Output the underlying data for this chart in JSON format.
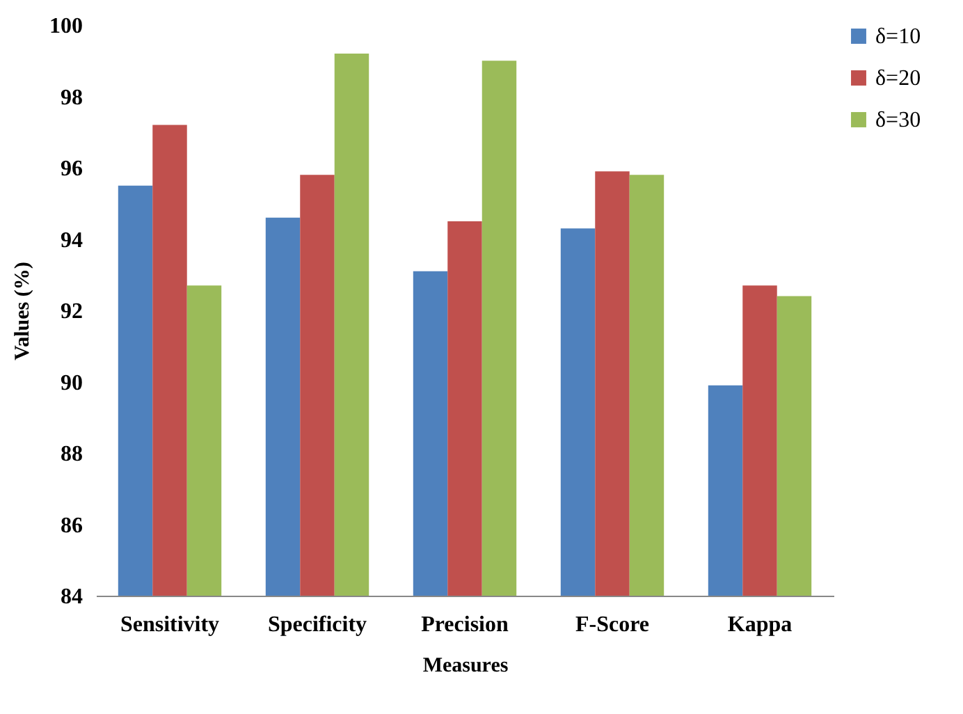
{
  "chart_data": {
    "type": "bar",
    "xlabel": "Measures",
    "ylabel": "Values (%)",
    "categories": [
      "Sensitivity",
      "Specificity",
      "Precision",
      "F-Score",
      "Kappa"
    ],
    "series": [
      {
        "name": "δ=10",
        "color": "#4f81bd",
        "values": [
          95.5,
          94.6,
          93.1,
          94.3,
          89.9
        ]
      },
      {
        "name": "δ=20",
        "color": "#c0504d",
        "values": [
          97.2,
          95.8,
          94.5,
          95.9,
          92.7
        ]
      },
      {
        "name": "δ=30",
        "color": "#9bbb59",
        "values": [
          92.7,
          99.2,
          99.0,
          95.8,
          92.4
        ]
      }
    ],
    "ylim": [
      84,
      100
    ],
    "yticks": [
      84,
      86,
      88,
      90,
      92,
      94,
      96,
      98,
      100
    ],
    "grid": false,
    "legend": "top right"
  }
}
